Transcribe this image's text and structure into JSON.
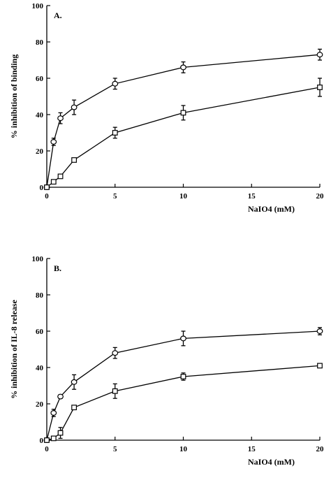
{
  "chart_data": [
    {
      "type": "line",
      "panel_label": "A.",
      "xlabel": "NaIO4 (mM)",
      "ylabel": "% inhibition of binding",
      "xlim": [
        0,
        20
      ],
      "ylim": [
        0,
        100
      ],
      "xticks": [
        0,
        5,
        10,
        15,
        20
      ],
      "yticks": [
        0,
        20,
        40,
        60,
        80,
        100
      ],
      "grid": false,
      "series": [
        {
          "marker": "circle",
          "points": [
            {
              "x": 0,
              "y": 0,
              "err": 0
            },
            {
              "x": 0.5,
              "y": 25,
              "err": 2
            },
            {
              "x": 1,
              "y": 38,
              "err": 3
            },
            {
              "x": 2,
              "y": 44,
              "err": 4
            },
            {
              "x": 5,
              "y": 57,
              "err": 3
            },
            {
              "x": 10,
              "y": 66,
              "err": 3
            },
            {
              "x": 20,
              "y": 73,
              "err": 3
            }
          ]
        },
        {
          "marker": "square",
          "points": [
            {
              "x": 0,
              "y": 0,
              "err": 0
            },
            {
              "x": 0.5,
              "y": 3,
              "err": 0
            },
            {
              "x": 1,
              "y": 6,
              "err": 1
            },
            {
              "x": 2,
              "y": 15,
              "err": 1
            },
            {
              "x": 5,
              "y": 30,
              "err": 3
            },
            {
              "x": 10,
              "y": 41,
              "err": 4
            },
            {
              "x": 20,
              "y": 55,
              "err": 5
            }
          ]
        }
      ]
    },
    {
      "type": "line",
      "panel_label": "B.",
      "xlabel": "NaIO4 (mM)",
      "ylabel": "% inhibition of IL-8 release",
      "xlim": [
        0,
        20
      ],
      "ylim": [
        0,
        100
      ],
      "xticks": [
        0,
        5,
        10,
        15,
        20
      ],
      "yticks": [
        0,
        20,
        40,
        60,
        80,
        100
      ],
      "grid": false,
      "series": [
        {
          "marker": "circle",
          "points": [
            {
              "x": 0,
              "y": 0,
              "err": 0
            },
            {
              "x": 0.5,
              "y": 15,
              "err": 2
            },
            {
              "x": 1,
              "y": 24,
              "err": 1
            },
            {
              "x": 2,
              "y": 32,
              "err": 4
            },
            {
              "x": 5,
              "y": 48,
              "err": 3
            },
            {
              "x": 10,
              "y": 56,
              "err": 4
            },
            {
              "x": 20,
              "y": 60,
              "err": 2
            }
          ]
        },
        {
          "marker": "square",
          "points": [
            {
              "x": 0,
              "y": 0,
              "err": 0
            },
            {
              "x": 0.5,
              "y": 1,
              "err": 1
            },
            {
              "x": 1,
              "y": 4,
              "err": 3
            },
            {
              "x": 2,
              "y": 18,
              "err": 1
            },
            {
              "x": 5,
              "y": 27,
              "err": 4
            },
            {
              "x": 10,
              "y": 35,
              "err": 2
            },
            {
              "x": 20,
              "y": 41,
              "err": 1
            }
          ]
        }
      ]
    }
  ]
}
